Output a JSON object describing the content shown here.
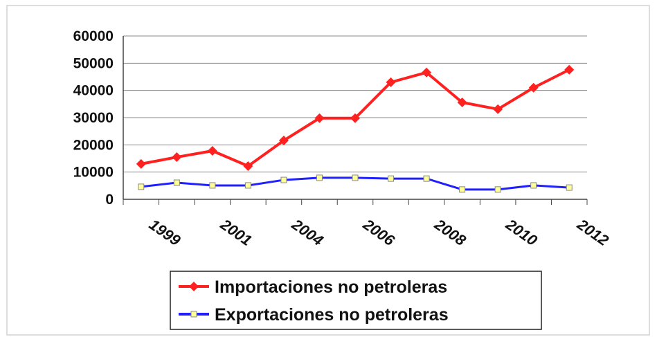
{
  "chart_data": {
    "type": "line",
    "categories": [
      "1999",
      null,
      "2001",
      null,
      "2004",
      null,
      "2006",
      null,
      "2008",
      null,
      "2010",
      null,
      "2012"
    ],
    "series": [
      {
        "name": "Importaciones no petroleras",
        "color": "#ff2020",
        "marker": "diamond",
        "values": [
          13000,
          15500,
          17800,
          12200,
          21600,
          29800,
          29800,
          43000,
          46600,
          35600,
          33100,
          41000,
          47600
        ]
      },
      {
        "name": "Exportaciones no petroleras",
        "color": "#2020ff",
        "marker": "square",
        "values": [
          4600,
          6100,
          5100,
          5100,
          7100,
          7900,
          7900,
          7600,
          7600,
          3600,
          3600,
          5100,
          4300
        ]
      }
    ],
    "ylim": [
      0,
      60000
    ],
    "yticks": [
      0,
      10000,
      20000,
      30000,
      40000,
      50000,
      60000
    ],
    "grid": true,
    "legend": "bottom"
  }
}
